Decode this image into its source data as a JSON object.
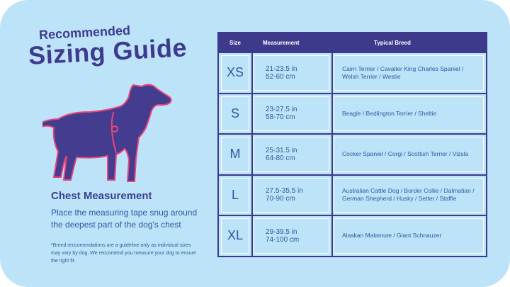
{
  "header": {
    "subtitle": "Recommended",
    "title": "Sizing Guide"
  },
  "section": {
    "title": "Chest Measurement",
    "text": "Place the measuring tape snug around the deepest part of the dog's chest"
  },
  "footnote": "*Breed reccomendations are a guideline only as individual sizes may vary by dog. We reccomend you measure your dog to ensure the right fit.",
  "table": {
    "columns": [
      "Size",
      "Measurement",
      "Typical Breed"
    ],
    "rows": [
      {
        "size": "XS",
        "measurement": [
          "21-23.5 in",
          "52-60 cm"
        ],
        "breed": "Cairn Terrier / Cavalier King Charles Spaniel / Welsh Terrier / Westie"
      },
      {
        "size": "S",
        "measurement": [
          "23-27.5 in",
          "58-70 cm"
        ],
        "breed": "Beagle / Bedlington Terrier / Sheltie"
      },
      {
        "size": "M",
        "measurement": [
          "25-31.5 in",
          "64-80 cm"
        ],
        "breed": "Cocker Spaniel / Corgi / Scottish Terrier / Vizsla"
      },
      {
        "size": "L",
        "measurement": [
          "27.5-35.5 in",
          "70-90 cm"
        ],
        "breed": "Australian Cattle Dog / Border Collie / Dalmatian / German Shepherd / Husky / Setter / Staffie"
      },
      {
        "size": "XL",
        "measurement": [
          "29-39.5 in",
          "74-100 cm"
        ],
        "breed": "Alaskan Malamute / Giant Schnauzer"
      }
    ]
  }
}
